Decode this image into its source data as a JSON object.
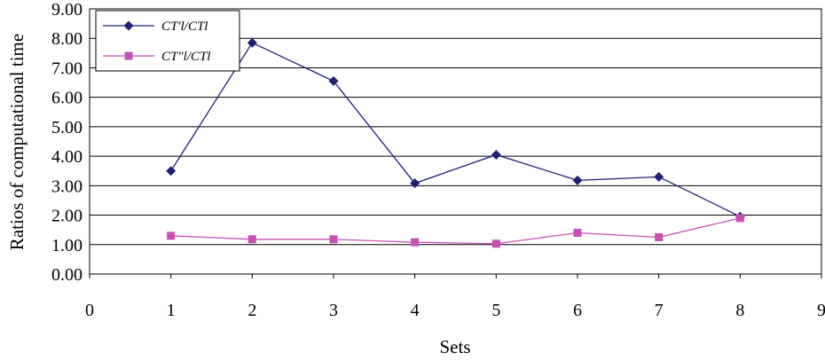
{
  "chart_data": {
    "type": "line",
    "title": "",
    "xlabel": "Sets",
    "ylabel": "Ratios of computational time",
    "xlim": [
      0,
      9
    ],
    "ylim": [
      0,
      9
    ],
    "x_ticks": [
      "0",
      "1",
      "2",
      "3",
      "4",
      "5",
      "6",
      "7",
      "8",
      "9"
    ],
    "y_ticks": [
      "0.00",
      "1.00",
      "2.00",
      "3.00",
      "4.00",
      "5.00",
      "6.00",
      "7.00",
      "8.00",
      "9.00"
    ],
    "grid": "horizontal",
    "legend_position": "top-left",
    "x": [
      1,
      2,
      3,
      4,
      5,
      6,
      7,
      8
    ],
    "series": [
      {
        "name": "CT′l/CTl",
        "color": "#1f1f7a",
        "marker": "diamond",
        "values": [
          3.5,
          7.85,
          6.55,
          3.08,
          4.05,
          3.18,
          3.3,
          1.95
        ]
      },
      {
        "name": "CT″l/CTl",
        "color": "#c94fb4",
        "marker": "square",
        "values": [
          1.3,
          1.18,
          1.18,
          1.08,
          1.03,
          1.4,
          1.25,
          1.9
        ]
      }
    ]
  }
}
